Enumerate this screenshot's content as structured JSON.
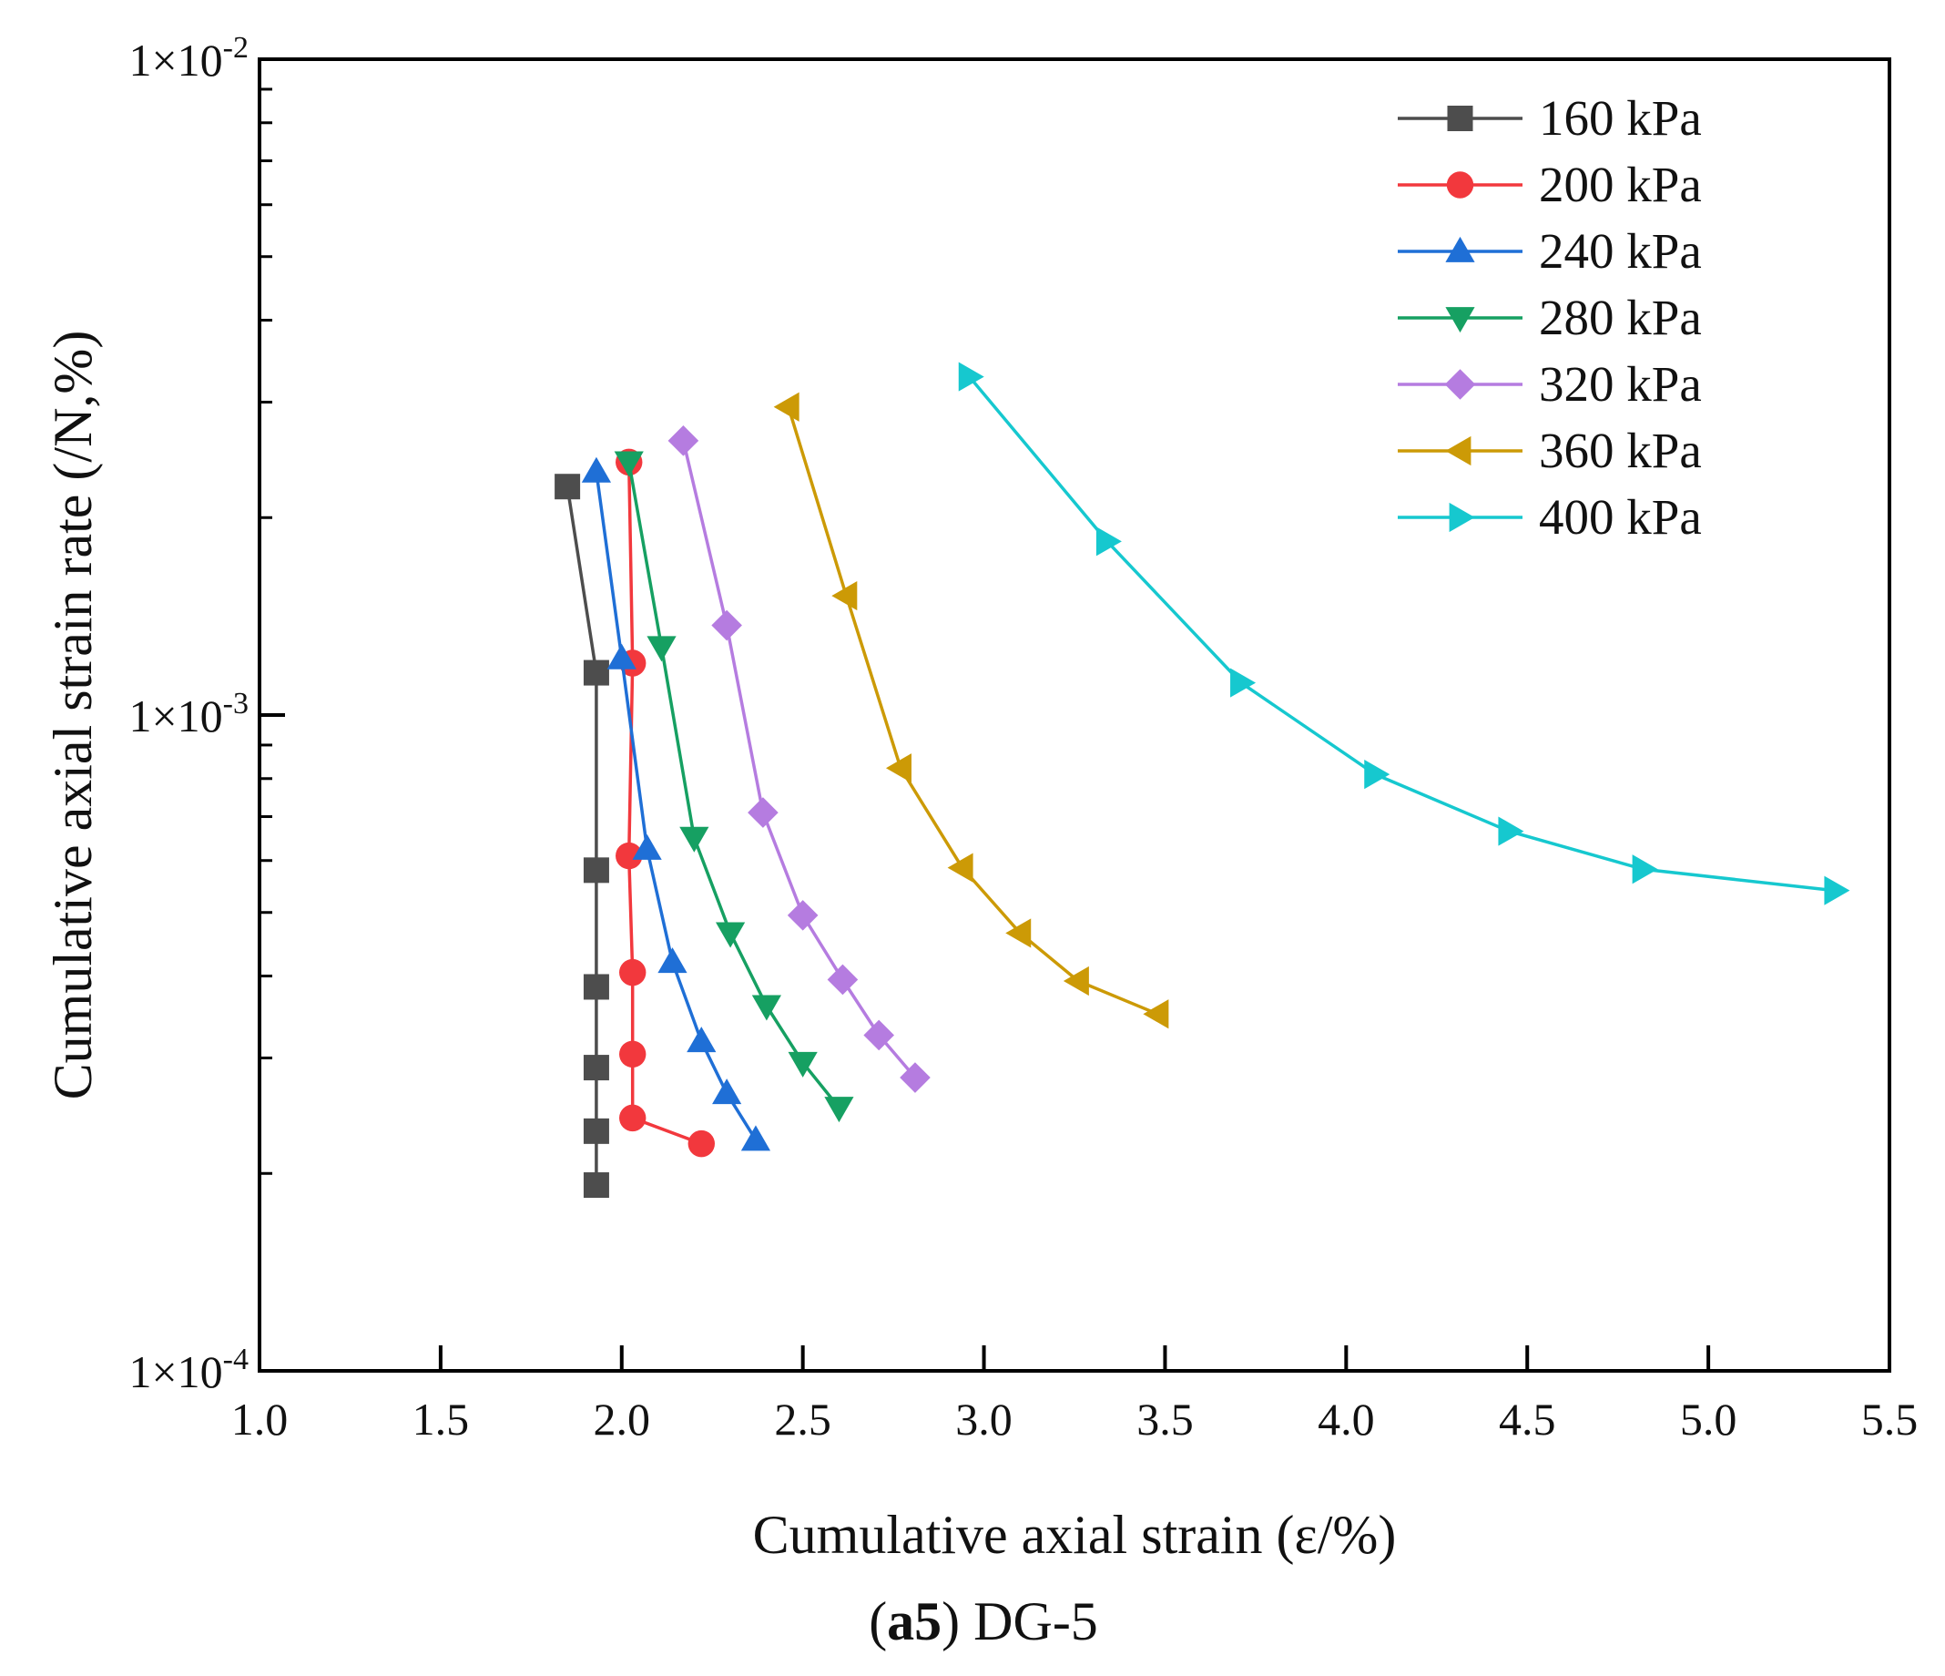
{
  "chart_data": {
    "type": "line",
    "title": "",
    "xlabel": "Cumulative axial strain (ε/%)",
    "ylabel": "Cumulative axial strain rate (/N,%)",
    "xlim": [
      1.0,
      5.5
    ],
    "ylim": [
      0.0001,
      0.01
    ],
    "yscale": "log",
    "x_ticks": [
      "1.0",
      "1.5",
      "2.0",
      "2.5",
      "3.0",
      "3.5",
      "4.0",
      "4.5",
      "5.0",
      "5.5"
    ],
    "y_ticks": [
      {
        "value": 0.0001,
        "mantissa": "1×10",
        "exponent": "-4"
      },
      {
        "value": 0.001,
        "mantissa": "1×10",
        "exponent": "-3"
      },
      {
        "value": 0.01,
        "mantissa": "1×10",
        "exponent": "-2"
      }
    ],
    "legend_position": "top-right",
    "caption": {
      "bold": "a5",
      "open": "(",
      "close": ")",
      "rest": " DG-5"
    },
    "series": [
      {
        "name": "160 kPa",
        "color": "#4d4d4d",
        "marker": "square",
        "points": [
          [
            1.85,
            0.00223
          ],
          [
            1.93,
            0.00116
          ],
          [
            1.93,
            0.00058
          ],
          [
            1.93,
            0.000385
          ],
          [
            1.93,
            0.00029
          ],
          [
            1.93,
            0.000232
          ],
          [
            1.93,
            0.000192
          ]
        ]
      },
      {
        "name": "200 kPa",
        "color": "#f2383d",
        "marker": "circle",
        "points": [
          [
            2.02,
            0.00243
          ],
          [
            2.03,
            0.0012
          ],
          [
            2.02,
            0.00061
          ],
          [
            2.03,
            0.000405
          ],
          [
            2.03,
            0.000304
          ],
          [
            2.03,
            0.000243
          ],
          [
            2.22,
            0.000222
          ]
        ]
      },
      {
        "name": "240 kPa",
        "color": "#1f6fd6",
        "marker": "triangle-up",
        "points": [
          [
            1.93,
            0.00235
          ],
          [
            2.0,
            0.00122
          ],
          [
            2.07,
            0.000625
          ],
          [
            2.14,
            0.00042
          ],
          [
            2.22,
            0.000318
          ],
          [
            2.29,
            0.000265
          ],
          [
            2.37,
            0.000225
          ]
        ]
      },
      {
        "name": "280 kPa",
        "color": "#16a062",
        "marker": "triangle-down",
        "points": [
          [
            2.02,
            0.00243
          ],
          [
            2.11,
            0.00127
          ],
          [
            2.2,
            0.00065
          ],
          [
            2.3,
            0.000465
          ],
          [
            2.4,
            0.00036
          ],
          [
            2.5,
            0.000295
          ],
          [
            2.6,
            0.000252
          ]
        ]
      },
      {
        "name": "320 kPa",
        "color": "#b57ce0",
        "marker": "diamond",
        "points": [
          [
            2.17,
            0.00262
          ],
          [
            2.29,
            0.00137
          ],
          [
            2.39,
            0.00071
          ],
          [
            2.5,
            0.000495
          ],
          [
            2.61,
            0.000395
          ],
          [
            2.71,
            0.000325
          ],
          [
            2.81,
            0.00028
          ]
        ]
      },
      {
        "name": "360 kPa",
        "color": "#cc9a06",
        "marker": "triangle-left",
        "points": [
          [
            2.46,
            0.00295
          ],
          [
            2.62,
            0.00152
          ],
          [
            2.77,
            0.00083
          ],
          [
            2.94,
            0.000585
          ],
          [
            3.1,
            0.000465
          ],
          [
            3.26,
            0.000393
          ],
          [
            3.48,
            0.00035
          ]
        ]
      },
      {
        "name": "400 kPa",
        "color": "#16c8cf",
        "marker": "triangle-right",
        "points": [
          [
            2.96,
            0.00328
          ],
          [
            3.34,
            0.00184
          ],
          [
            3.71,
            0.00112
          ],
          [
            4.08,
            0.000812
          ],
          [
            4.45,
            0.000665
          ],
          [
            4.82,
            0.000582
          ],
          [
            5.35,
            0.00054
          ]
        ]
      }
    ]
  }
}
